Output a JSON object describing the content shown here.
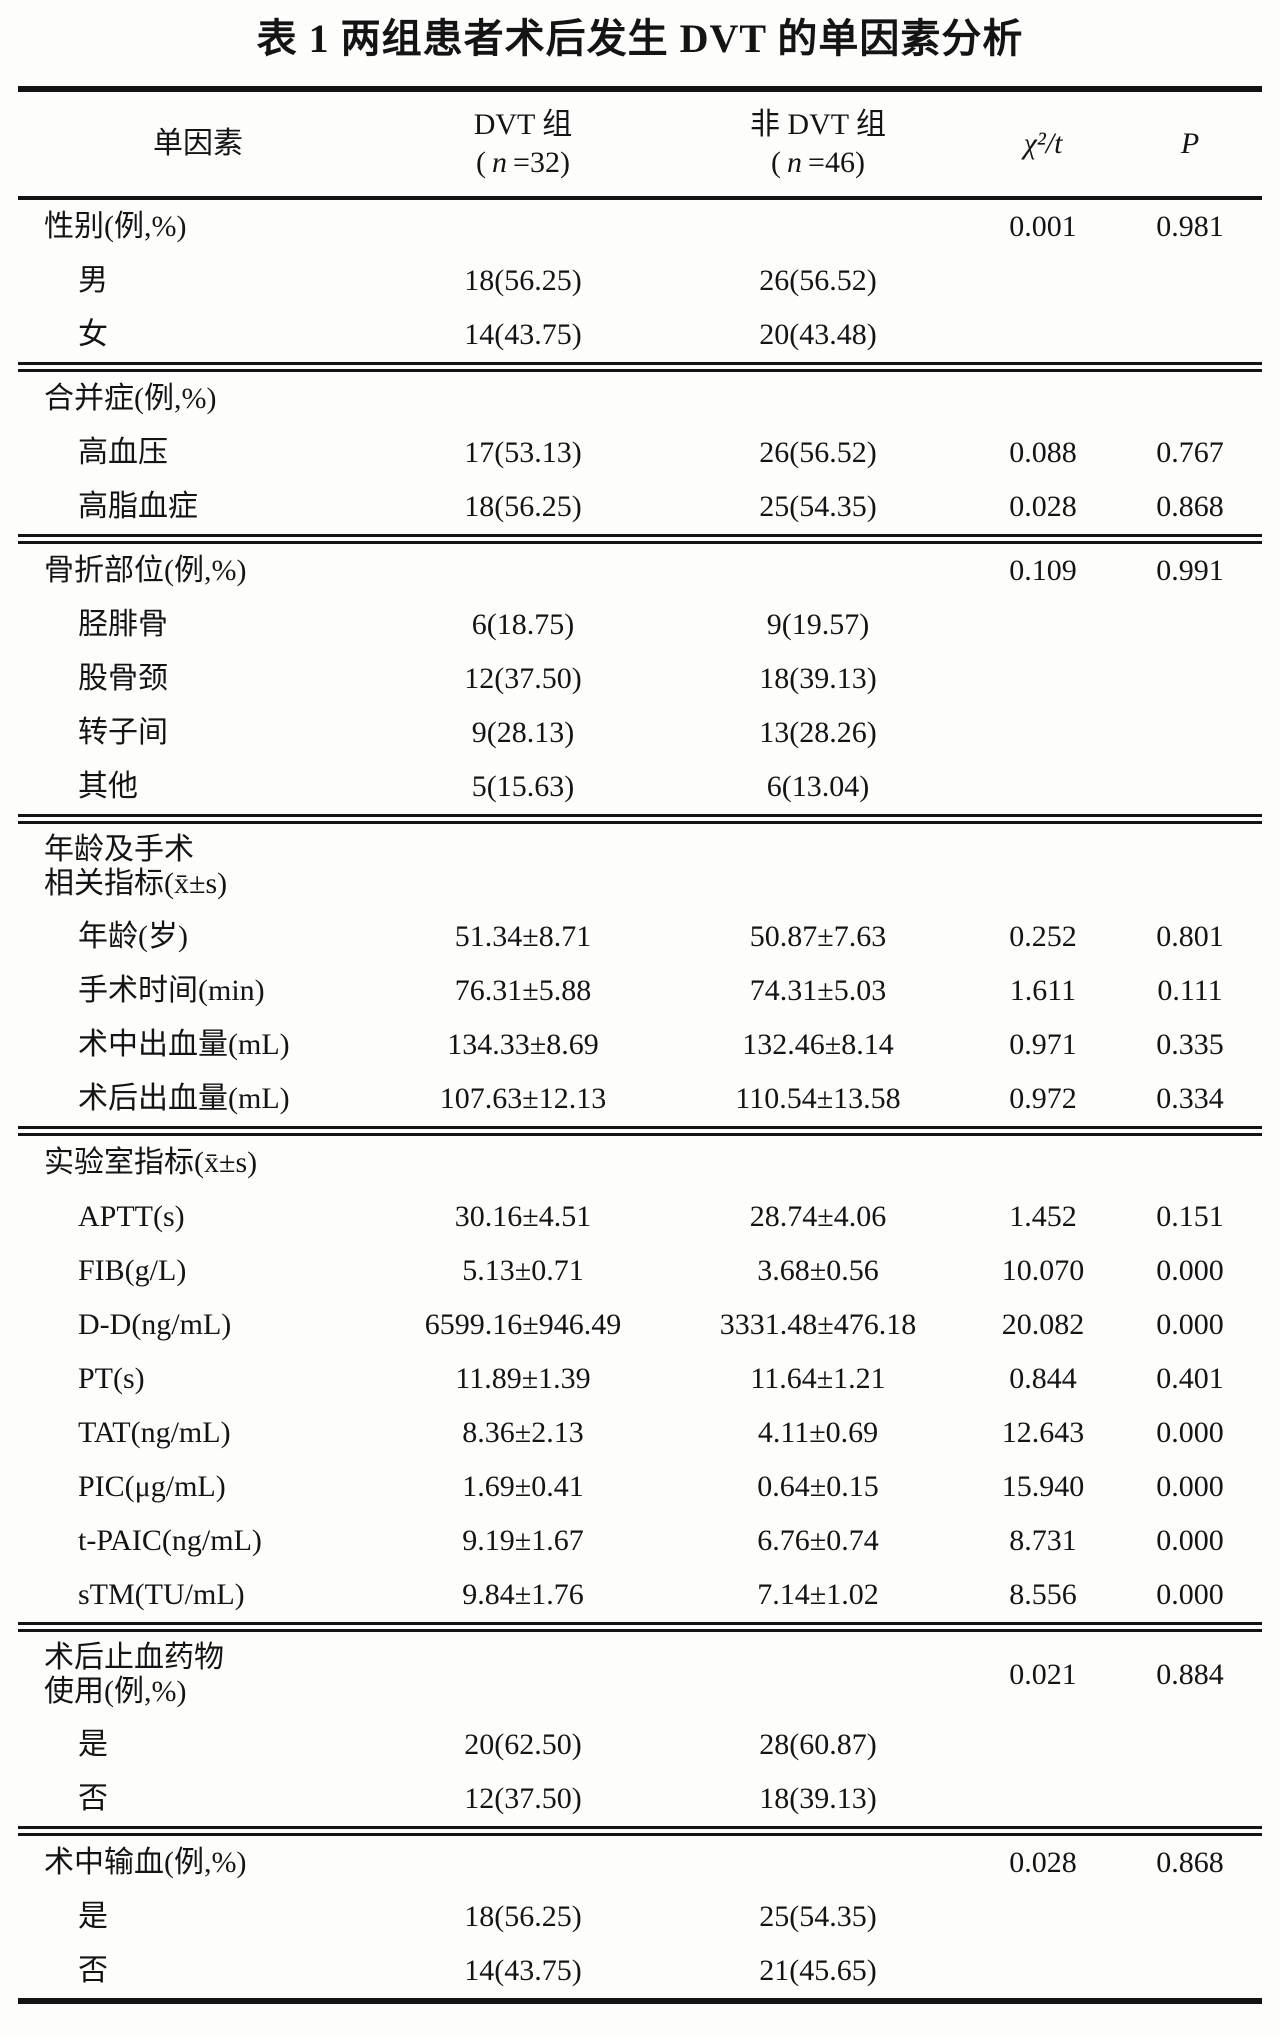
{
  "title": "表 1  两组患者术后发生 DVT 的单因素分析",
  "ink_color": "#141414",
  "background_color": "#fdfdfc",
  "table": {
    "header": {
      "factor": "单因素",
      "dvt_group": {
        "name": "DVT 组",
        "sub_open": "(",
        "sub_n": "n",
        "sub_rest": "=32)"
      },
      "non_dvt_group": {
        "name": "非 DVT 组",
        "sub_open": "(",
        "sub_n": "n",
        "sub_rest": "=46)"
      },
      "stat": "χ²/t",
      "p": "P"
    },
    "rows": [
      {
        "type": "section",
        "divider": false,
        "label": "性别(例,%)",
        "dvt": "",
        "ndvt": "",
        "chi": "0.001",
        "p": "0.981"
      },
      {
        "type": "item",
        "divider": false,
        "label": "男",
        "dvt": "18(56.25)",
        "ndvt": "26(56.52)",
        "chi": "",
        "p": ""
      },
      {
        "type": "item",
        "divider": false,
        "label": "女",
        "dvt": "14(43.75)",
        "ndvt": "20(43.48)",
        "chi": "",
        "p": ""
      },
      {
        "type": "section",
        "divider": true,
        "label": "合并症(例,%)",
        "dvt": "",
        "ndvt": "",
        "chi": "",
        "p": ""
      },
      {
        "type": "item",
        "divider": false,
        "label": "高血压",
        "dvt": "17(53.13)",
        "ndvt": "26(56.52)",
        "chi": "0.088",
        "p": "0.767"
      },
      {
        "type": "item",
        "divider": false,
        "label": "高脂血症",
        "dvt": "18(56.25)",
        "ndvt": "25(54.35)",
        "chi": "0.028",
        "p": "0.868"
      },
      {
        "type": "section",
        "divider": true,
        "label": "骨折部位(例,%)",
        "dvt": "",
        "ndvt": "",
        "chi": "0.109",
        "p": "0.991"
      },
      {
        "type": "item",
        "divider": false,
        "label": "胫腓骨",
        "dvt": "6(18.75)",
        "ndvt": "9(19.57)",
        "chi": "",
        "p": ""
      },
      {
        "type": "item",
        "divider": false,
        "label": "股骨颈",
        "dvt": "12(37.50)",
        "ndvt": "18(39.13)",
        "chi": "",
        "p": ""
      },
      {
        "type": "item",
        "divider": false,
        "label": "转子间",
        "dvt": "9(28.13)",
        "ndvt": "13(28.26)",
        "chi": "",
        "p": ""
      },
      {
        "type": "item",
        "divider": false,
        "label": "其他",
        "dvt": "5(15.63)",
        "ndvt": "6(13.04)",
        "chi": "",
        "p": ""
      },
      {
        "type": "section",
        "divider": true,
        "label": "年龄及手术\n相关指标(x̄±s)",
        "dvt": "",
        "ndvt": "",
        "chi": "",
        "p": ""
      },
      {
        "type": "item",
        "divider": false,
        "label": "年龄(岁)",
        "dvt": "51.34±8.71",
        "ndvt": "50.87±7.63",
        "chi": "0.252",
        "p": "0.801"
      },
      {
        "type": "item",
        "divider": false,
        "label": "手术时间(min)",
        "dvt": "76.31±5.88",
        "ndvt": "74.31±5.03",
        "chi": "1.611",
        "p": "0.111"
      },
      {
        "type": "item",
        "divider": false,
        "label": "术中出血量(mL)",
        "dvt": "134.33±8.69",
        "ndvt": "132.46±8.14",
        "chi": "0.971",
        "p": "0.335"
      },
      {
        "type": "item",
        "divider": false,
        "label": "术后出血量(mL)",
        "dvt": "107.63±12.13",
        "ndvt": "110.54±13.58",
        "chi": "0.972",
        "p": "0.334"
      },
      {
        "type": "section",
        "divider": true,
        "label": "实验室指标(x̄±s)",
        "dvt": "",
        "ndvt": "",
        "chi": "",
        "p": ""
      },
      {
        "type": "item",
        "divider": false,
        "label": "APTT(s)",
        "dvt": "30.16±4.51",
        "ndvt": "28.74±4.06",
        "chi": "1.452",
        "p": "0.151"
      },
      {
        "type": "item",
        "divider": false,
        "label": "FIB(g/L)",
        "dvt": "5.13±0.71",
        "ndvt": "3.68±0.56",
        "chi": "10.070",
        "p": "0.000"
      },
      {
        "type": "item",
        "divider": false,
        "label": "D-D(ng/mL)",
        "dvt": "6599.16±946.49",
        "ndvt": "3331.48±476.18",
        "chi": "20.082",
        "p": "0.000"
      },
      {
        "type": "item",
        "divider": false,
        "label": "PT(s)",
        "dvt": "11.89±1.39",
        "ndvt": "11.64±1.21",
        "chi": "0.844",
        "p": "0.401"
      },
      {
        "type": "item",
        "divider": false,
        "label": "TAT(ng/mL)",
        "dvt": "8.36±2.13",
        "ndvt": "4.11±0.69",
        "chi": "12.643",
        "p": "0.000"
      },
      {
        "type": "item",
        "divider": false,
        "label": "PIC(μg/mL)",
        "dvt": "1.69±0.41",
        "ndvt": "0.64±0.15",
        "chi": "15.940",
        "p": "0.000"
      },
      {
        "type": "item",
        "divider": false,
        "label": "t-PAIC(ng/mL)",
        "dvt": "9.19±1.67",
        "ndvt": "6.76±0.74",
        "chi": "8.731",
        "p": "0.000"
      },
      {
        "type": "item",
        "divider": false,
        "label": "sTM(TU/mL)",
        "dvt": "9.84±1.76",
        "ndvt": "7.14±1.02",
        "chi": "8.556",
        "p": "0.000"
      },
      {
        "type": "section",
        "divider": true,
        "label": "术后止血药物\n使用(例,%)",
        "dvt": "",
        "ndvt": "",
        "chi": "0.021",
        "p": "0.884"
      },
      {
        "type": "item",
        "divider": false,
        "label": "是",
        "dvt": "20(62.50)",
        "ndvt": "28(60.87)",
        "chi": "",
        "p": ""
      },
      {
        "type": "item",
        "divider": false,
        "label": "否",
        "dvt": "12(37.50)",
        "ndvt": "18(39.13)",
        "chi": "",
        "p": ""
      },
      {
        "type": "section",
        "divider": true,
        "label": "术中输血(例,%)",
        "dvt": "",
        "ndvt": "",
        "chi": "0.028",
        "p": "0.868"
      },
      {
        "type": "item",
        "divider": false,
        "label": "是",
        "dvt": "18(56.25)",
        "ndvt": "25(54.35)",
        "chi": "",
        "p": ""
      },
      {
        "type": "item",
        "divider": false,
        "label": "否",
        "dvt": "14(43.75)",
        "ndvt": "21(45.65)",
        "chi": "",
        "p": ""
      }
    ]
  }
}
